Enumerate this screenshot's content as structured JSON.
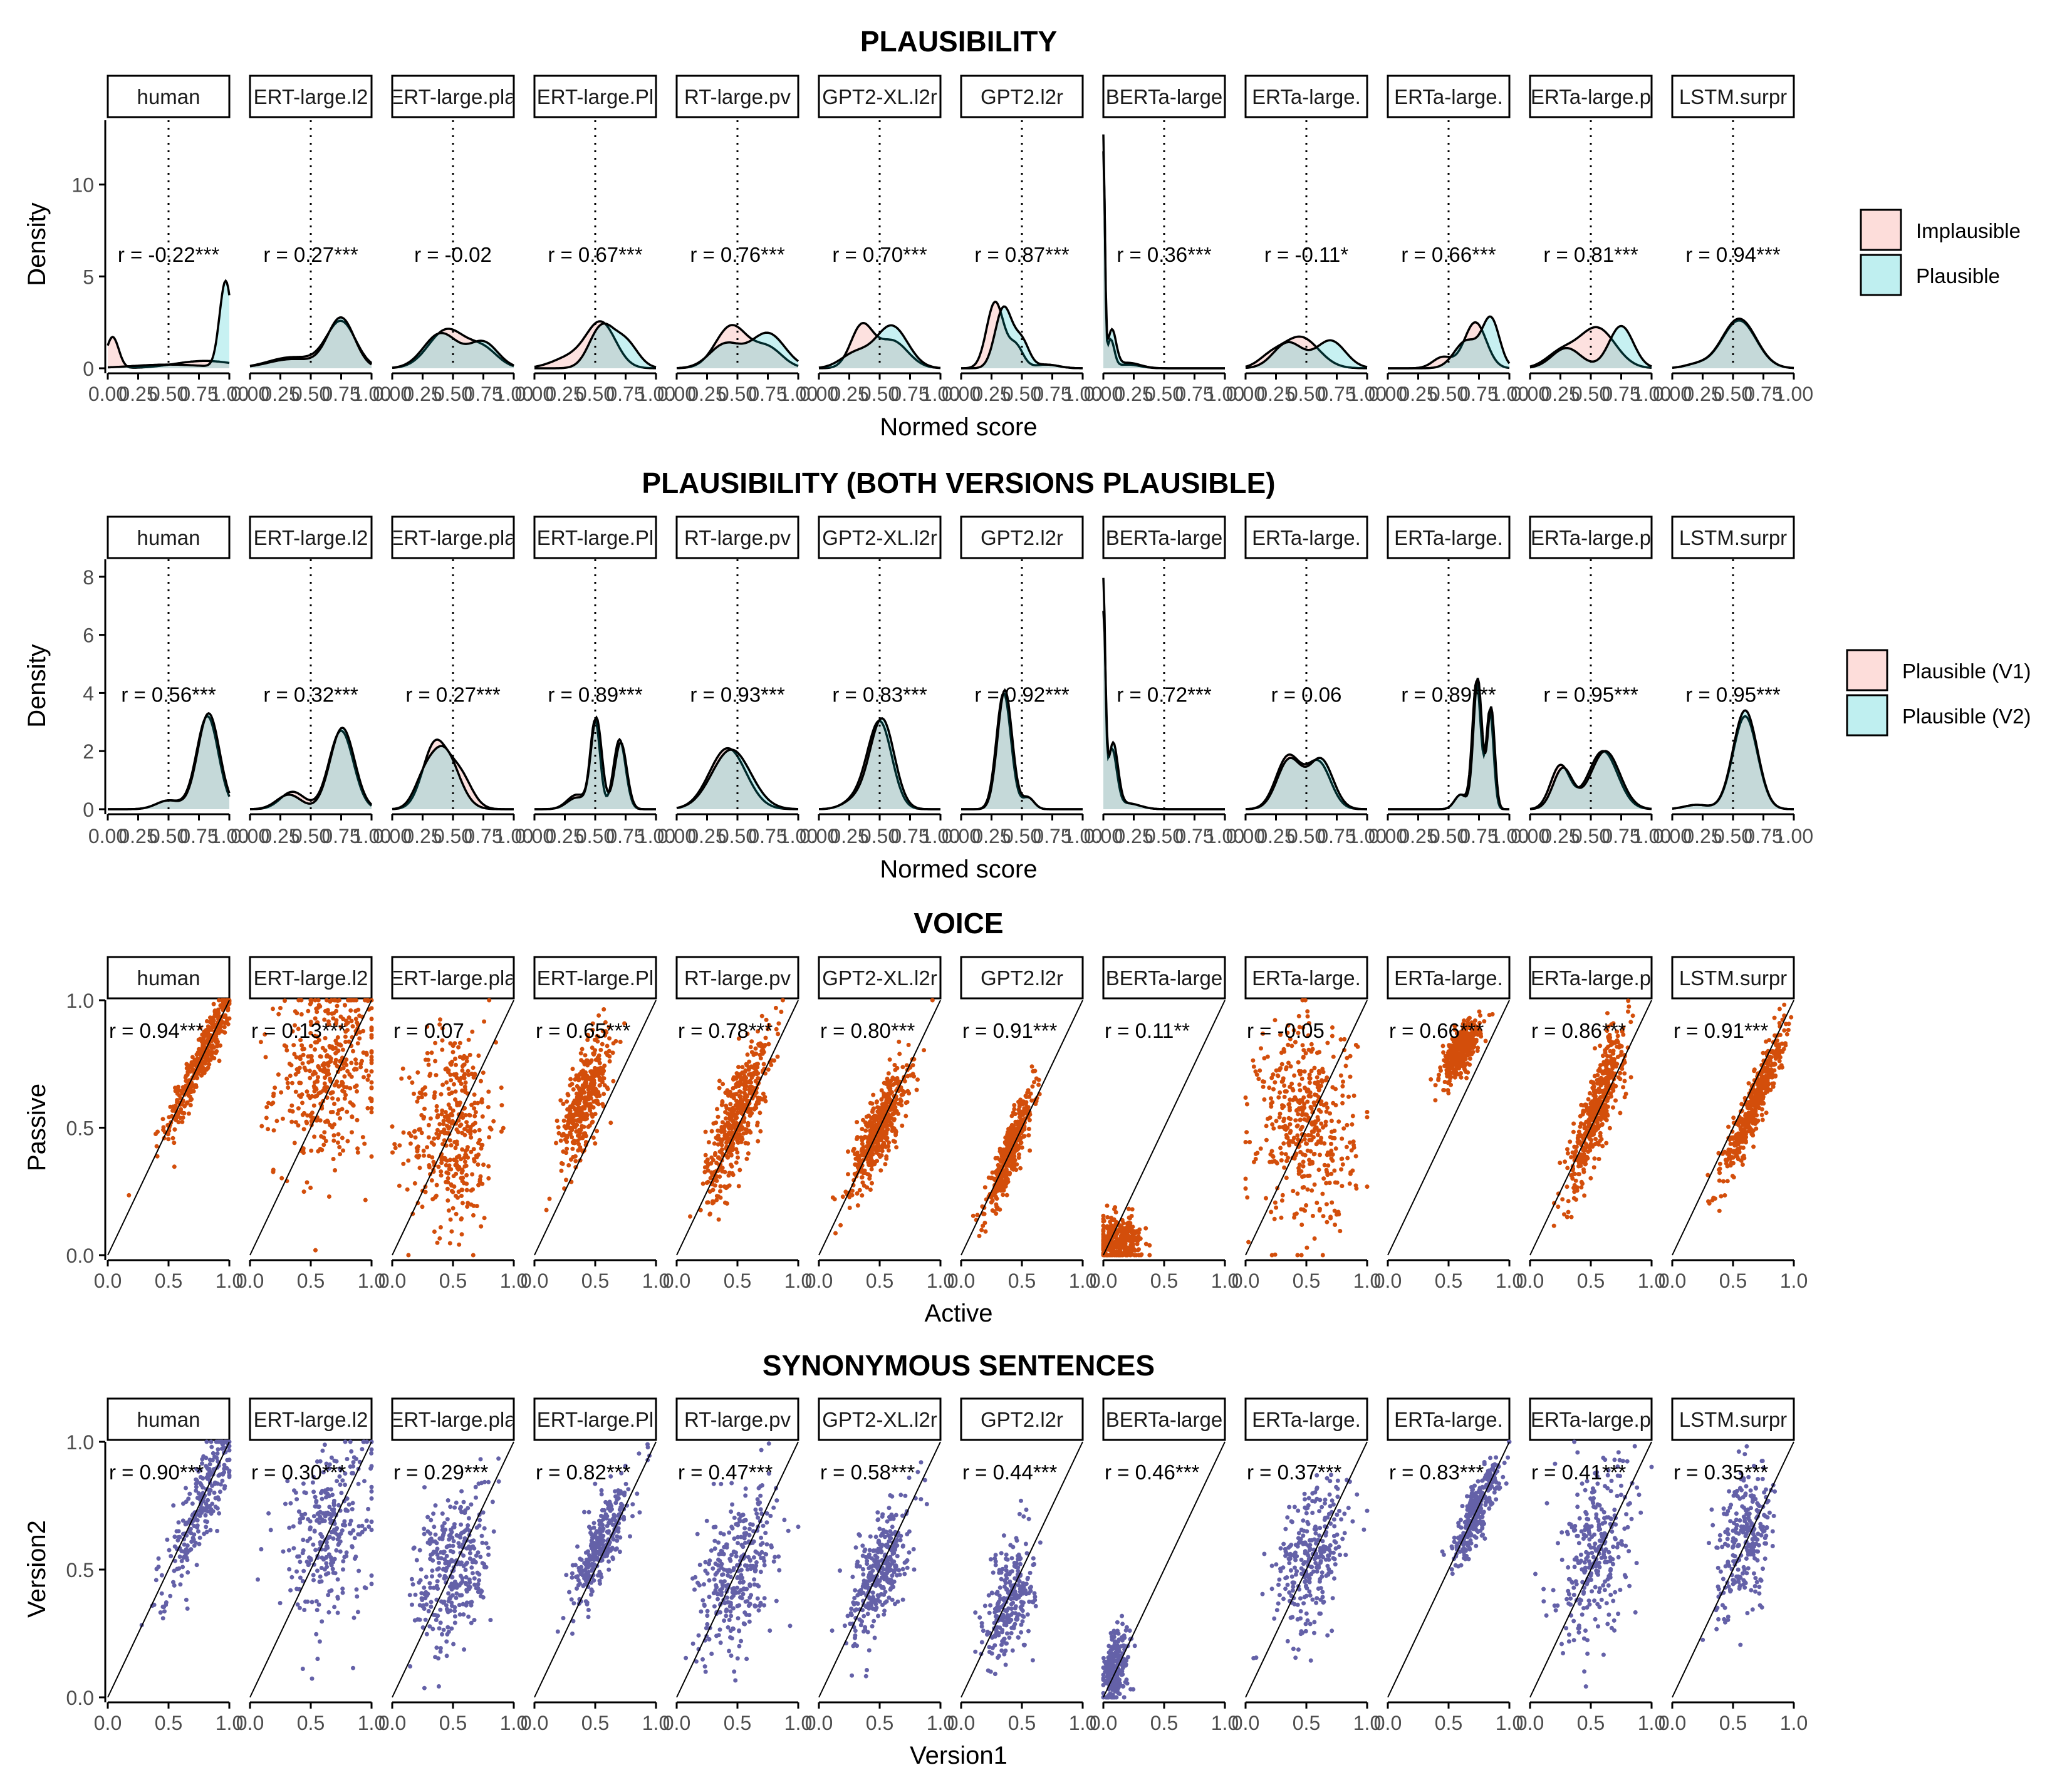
{
  "colors": {
    "implausible_fill": "#F8766D",
    "plausible_fill": "#00BFC4",
    "overlap_fill": "#cfd5d3",
    "voice_points": "#d34e0b",
    "synonym_points": "#6461a8",
    "strip_border": "#000000",
    "reference_line": "#000000"
  },
  "facets": [
    "human",
    "ERT-large.l2",
    "ERT-large.pla",
    "ERT-large.Pl",
    "RT-large.pv",
    "GPT2-XL.l2r",
    "GPT2.l2r",
    "BERTa-large",
    "ERTa-large.",
    "ERTa-large.",
    "ERTa-large.p",
    "LSTM.surpr"
  ],
  "chart_data": [
    {
      "type": "area",
      "title": "PLAUSIBILITY",
      "xlabel": "Normed score",
      "ylabel": "Density",
      "xlim": [
        0,
        1
      ],
      "ylim": [
        0,
        13.5
      ],
      "x_ticks": [
        "0.00",
        "0.25",
        "0.50",
        "0.75",
        "1.00"
      ],
      "y_ticks": [
        "0",
        "5",
        "10"
      ],
      "y_tick_values": [
        0,
        5,
        10
      ],
      "vline": 0.5,
      "legend": {
        "placement": "right",
        "entries": [
          "Implausible",
          "Plausible"
        ]
      },
      "correlations": [
        "r = -0.22***",
        "r = 0.27***",
        "r = -0.02",
        "r = 0.67***",
        "r = 0.76***",
        "r = 0.70***",
        "r = 0.87***",
        "r = 0.36***",
        "r = -0.11*",
        "r = 0.66***",
        "r = 0.81***",
        "r = 0.94***"
      ],
      "series_names": [
        "Implausible",
        "Plausible"
      ],
      "peaks": [
        [
          [
            [
              0.04,
              1.7,
              0.05
            ],
            [
              0.8,
              0.4,
              0.25
            ]
          ],
          [
            [
              0.97,
              4.7,
              0.05
            ],
            [
              0.5,
              0.2,
              0.3
            ]
          ]
        ],
        [
          [
            [
              0.75,
              2.5,
              0.12
            ],
            [
              0.35,
              0.6,
              0.2
            ]
          ],
          [
            [
              0.75,
              2.7,
              0.11
            ],
            [
              0.35,
              0.5,
              0.2
            ]
          ]
        ],
        [
          [
            [
              0.45,
              2.1,
              0.15
            ],
            [
              0.75,
              1.0,
              0.12
            ]
          ],
          [
            [
              0.4,
              1.9,
              0.14
            ],
            [
              0.75,
              1.4,
              0.12
            ]
          ]
        ],
        [
          [
            [
              0.55,
              2.4,
              0.12
            ],
            [
              0.3,
              0.6,
              0.15
            ]
          ],
          [
            [
              0.55,
              2.2,
              0.1
            ],
            [
              0.75,
              1.4,
              0.1
            ]
          ]
        ],
        [
          [
            [
              0.45,
              2.3,
              0.13
            ],
            [
              0.75,
              1.1,
              0.12
            ]
          ],
          [
            [
              0.4,
              1.3,
              0.13
            ],
            [
              0.75,
              1.9,
              0.14
            ]
          ]
        ],
        [
          [
            [
              0.35,
              2.2,
              0.09
            ],
            [
              0.6,
              1.5,
              0.13
            ]
          ],
          [
            [
              0.6,
              2.3,
              0.13
            ],
            [
              0.3,
              0.8,
              0.12
            ]
          ]
        ],
        [
          [
            [
              0.28,
              3.6,
              0.07
            ],
            [
              0.45,
              1.2,
              0.06
            ],
            [
              0.7,
              0.2,
              0.1
            ]
          ],
          [
            [
              0.35,
              3.3,
              0.07
            ],
            [
              0.5,
              1.4,
              0.06
            ],
            [
              0.7,
              0.2,
              0.1
            ]
          ]
        ],
        [
          [
            [
              0.0,
              12.5,
              0.012
            ],
            [
              0.06,
              1.5,
              0.03
            ],
            [
              0.2,
              0.2,
              0.1
            ]
          ],
          [
            [
              0.0,
              11.5,
              0.013
            ],
            [
              0.07,
              2.0,
              0.035
            ],
            [
              0.2,
              0.3,
              0.1
            ]
          ]
        ],
        [
          [
            [
              0.45,
              1.7,
              0.15
            ],
            [
              0.2,
              0.5,
              0.1
            ]
          ],
          [
            [
              0.35,
              1.4,
              0.12
            ],
            [
              0.7,
              1.5,
              0.12
            ]
          ]
        ],
        [
          [
            [
              0.72,
              2.5,
              0.09
            ],
            [
              0.45,
              0.6,
              0.08
            ]
          ],
          [
            [
              0.85,
              2.6,
              0.07
            ],
            [
              0.65,
              1.5,
              0.1
            ]
          ]
        ],
        [
          [
            [
              0.55,
              2.2,
              0.15
            ],
            [
              0.25,
              0.8,
              0.12
            ]
          ],
          [
            [
              0.75,
              2.3,
              0.1
            ],
            [
              0.3,
              1.1,
              0.12
            ]
          ]
        ],
        [
          [
            [
              0.55,
              2.6,
              0.14
            ],
            [
              0.2,
              0.2,
              0.1
            ]
          ],
          [
            [
              0.55,
              2.7,
              0.14
            ],
            [
              0.2,
              0.2,
              0.1
            ]
          ]
        ]
      ]
    },
    {
      "type": "area",
      "title": "PLAUSIBILITY (BOTH VERSIONS PLAUSIBLE)",
      "xlabel": "Normed score",
      "ylabel": "Density",
      "xlim": [
        0,
        1
      ],
      "ylim": [
        0,
        8.6
      ],
      "x_ticks": [
        "0.00",
        "0.25",
        "0.50",
        "0.75",
        "1.00"
      ],
      "y_ticks": [
        "0",
        "2",
        "4",
        "6",
        "8"
      ],
      "y_tick_values": [
        0,
        2,
        4,
        6,
        8
      ],
      "vline": 0.5,
      "legend": {
        "placement": "right",
        "entries": [
          "Plausible (V1)",
          "Plausible (V2)"
        ]
      },
      "correlations": [
        "r = 0.56***",
        "r = 0.32***",
        "r = 0.27***",
        "r = 0.89***",
        "r = 0.93***",
        "r = 0.83***",
        "r = 0.92***",
        "r = 0.72***",
        "r = 0.06",
        "r = 0.89***",
        "r = 0.95***",
        "r = 0.95***"
      ],
      "series_names": [
        "Plausible (V1)",
        "Plausible (V2)"
      ],
      "peaks": [
        [
          [
            [
              0.82,
              3.2,
              0.09
            ],
            [
              0.5,
              0.3,
              0.1
            ]
          ],
          [
            [
              0.83,
              3.3,
              0.09
            ],
            [
              0.5,
              0.3,
              0.1
            ]
          ]
        ],
        [
          [
            [
              0.75,
              2.7,
              0.1
            ],
            [
              0.35,
              0.6,
              0.1
            ]
          ],
          [
            [
              0.76,
              2.8,
              0.1
            ],
            [
              0.32,
              0.5,
              0.1
            ]
          ]
        ],
        [
          [
            [
              0.35,
              2.2,
              0.1
            ],
            [
              0.55,
              1.2,
              0.1
            ]
          ],
          [
            [
              0.42,
              2.1,
              0.12
            ],
            [
              0.25,
              0.6,
              0.08
            ]
          ]
        ],
        [
          [
            [
              0.5,
              3.0,
              0.04
            ],
            [
              0.7,
              2.4,
              0.05
            ],
            [
              0.35,
              0.5,
              0.08
            ]
          ],
          [
            [
              0.51,
              3.1,
              0.045
            ],
            [
              0.71,
              2.3,
              0.05
            ],
            [
              0.35,
              0.4,
              0.08
            ]
          ]
        ],
        [
          [
            [
              0.42,
              2.1,
              0.15
            ]
          ],
          [
            [
              0.45,
              2.05,
              0.16
            ]
          ]
        ],
        [
          [
            [
              0.5,
              3.0,
              0.1
            ],
            [
              0.3,
              0.3,
              0.1
            ]
          ],
          [
            [
              0.52,
              3.1,
              0.1
            ],
            [
              0.3,
              0.3,
              0.1
            ]
          ]
        ],
        [
          [
            [
              0.35,
              4.0,
              0.06
            ],
            [
              0.55,
              0.4,
              0.05
            ]
          ],
          [
            [
              0.36,
              4.1,
              0.06
            ],
            [
              0.55,
              0.4,
              0.05
            ]
          ]
        ],
        [
          [
            [
              0.0,
              7.5,
              0.015
            ],
            [
              0.07,
              2.0,
              0.04
            ],
            [
              0.2,
              0.2,
              0.1
            ]
          ],
          [
            [
              0.0,
              6.5,
              0.018
            ],
            [
              0.08,
              2.2,
              0.04
            ],
            [
              0.2,
              0.2,
              0.1
            ]
          ]
        ],
        [
          [
            [
              0.35,
              1.8,
              0.1
            ],
            [
              0.6,
              1.6,
              0.1
            ]
          ],
          [
            [
              0.36,
              1.7,
              0.1
            ],
            [
              0.62,
              1.7,
              0.1
            ]
          ]
        ],
        [
          [
            [
              0.73,
              4.4,
              0.035
            ],
            [
              0.84,
              3.4,
              0.03
            ],
            [
              0.6,
              0.5,
              0.05
            ]
          ],
          [
            [
              0.74,
              4.5,
              0.035
            ],
            [
              0.85,
              3.5,
              0.03
            ],
            [
              0.6,
              0.5,
              0.05
            ]
          ]
        ],
        [
          [
            [
              0.25,
              1.5,
              0.08
            ],
            [
              0.6,
              2.0,
              0.12
            ]
          ],
          [
            [
              0.27,
              1.4,
              0.08
            ],
            [
              0.62,
              2.0,
              0.12
            ]
          ]
        ],
        [
          [
            [
              0.6,
              3.2,
              0.1
            ],
            [
              0.2,
              0.15,
              0.1
            ]
          ],
          [
            [
              0.6,
              3.4,
              0.1
            ],
            [
              0.2,
              0.15,
              0.1
            ]
          ]
        ]
      ]
    },
    {
      "type": "scatter",
      "title": "VOICE",
      "xlabel": "Active",
      "ylabel": "Passive",
      "xlim": [
        0,
        1
      ],
      "ylim": [
        0,
        1
      ],
      "x_ticks": [
        "0.0",
        "0.5",
        "1.0"
      ],
      "y_ticks": [
        "0.0",
        "0.5",
        "1.0"
      ],
      "identity_line": true,
      "correlations": [
        "r = 0.94***",
        "r = 0.13***",
        "r = 0.07",
        "r = 0.65***",
        "r = 0.78***",
        "r = 0.80***",
        "r = 0.91***",
        "r = 0.11**",
        "r = -0.05",
        "r = 0.66***",
        "r = 0.86***",
        "r = 0.91***"
      ],
      "clouds": [
        [
          0.78,
          0.78,
          0.15,
          0.15,
          0.94,
          700
        ],
        [
          0.65,
          0.72,
          0.22,
          0.18,
          0.13,
          700
        ],
        [
          0.5,
          0.5,
          0.18,
          0.2,
          0.07,
          650
        ],
        [
          0.42,
          0.62,
          0.1,
          0.12,
          0.65,
          650
        ],
        [
          0.5,
          0.55,
          0.13,
          0.16,
          0.78,
          800
        ],
        [
          0.5,
          0.5,
          0.12,
          0.12,
          0.8,
          800
        ],
        [
          0.4,
          0.4,
          0.1,
          0.12,
          0.91,
          750
        ],
        [
          0.12,
          0.05,
          0.1,
          0.05,
          0.11,
          550
        ],
        [
          0.5,
          0.52,
          0.2,
          0.2,
          -0.05,
          750
        ],
        [
          0.6,
          0.8,
          0.08,
          0.06,
          0.66,
          600
        ],
        [
          0.55,
          0.58,
          0.12,
          0.16,
          0.86,
          800
        ],
        [
          0.68,
          0.6,
          0.12,
          0.14,
          0.91,
          800
        ]
      ]
    },
    {
      "type": "scatter",
      "title": "SYNONYMOUS SENTENCES",
      "xlabel": "Version1",
      "ylabel": "Version2",
      "xlim": [
        0,
        1
      ],
      "ylim": [
        0,
        1
      ],
      "x_ticks": [
        "0.0",
        "0.5",
        "1.0"
      ],
      "y_ticks": [
        "0.0",
        "0.5",
        "1.0"
      ],
      "identity_line": true,
      "correlations": [
        "r = 0.90***",
        "r = 0.30***",
        "r = 0.29***",
        "r = 0.82***",
        "r = 0.47***",
        "r = 0.58***",
        "r = 0.44***",
        "r = 0.46***",
        "r = 0.37***",
        "r = 0.83***",
        "r = 0.41***",
        "r = 0.35***"
      ],
      "clouds": [
        [
          0.78,
          0.78,
          0.18,
          0.2,
          0.9,
          500
        ],
        [
          0.65,
          0.65,
          0.2,
          0.18,
          0.3,
          500
        ],
        [
          0.5,
          0.5,
          0.16,
          0.16,
          0.29,
          550
        ],
        [
          0.55,
          0.6,
          0.12,
          0.13,
          0.82,
          500
        ],
        [
          0.5,
          0.48,
          0.16,
          0.16,
          0.47,
          550
        ],
        [
          0.5,
          0.5,
          0.12,
          0.13,
          0.58,
          550
        ],
        [
          0.4,
          0.38,
          0.1,
          0.12,
          0.44,
          450
        ],
        [
          0.1,
          0.12,
          0.06,
          0.08,
          0.46,
          400
        ],
        [
          0.55,
          0.55,
          0.15,
          0.15,
          0.37,
          500
        ],
        [
          0.72,
          0.72,
          0.1,
          0.1,
          0.83,
          500
        ],
        [
          0.55,
          0.55,
          0.16,
          0.18,
          0.41,
          500
        ],
        [
          0.6,
          0.62,
          0.12,
          0.14,
          0.35,
          450
        ]
      ]
    }
  ]
}
